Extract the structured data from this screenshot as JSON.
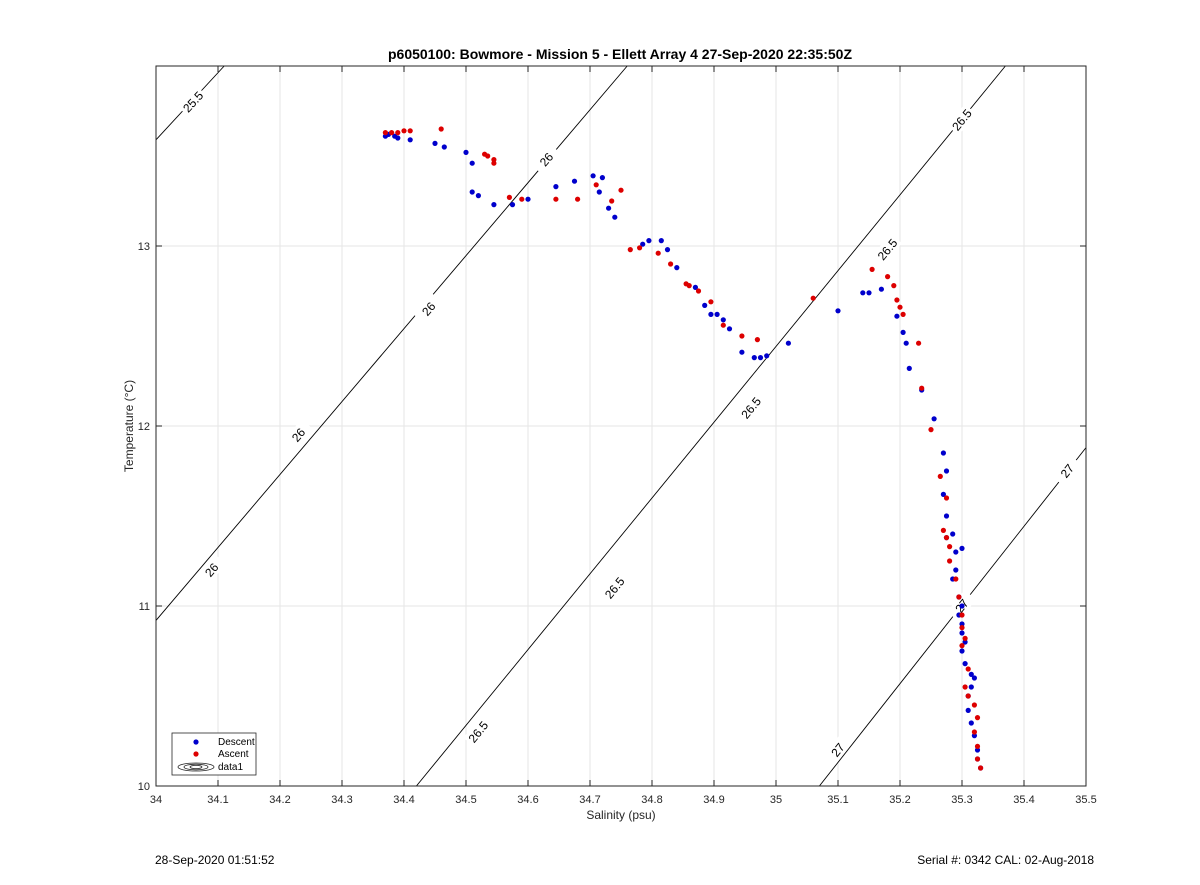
{
  "chart_data": {
    "type": "scatter",
    "title": "p6050100: Bowmore - Mission 5 - Ellett Array 4 27-Sep-2020 22:35:50Z",
    "xlabel": "Salinity (psu)",
    "ylabel": "Temperature (°C)",
    "xlim": [
      34,
      35.5
    ],
    "ylim": [
      10,
      14
    ],
    "xticks": [
      "34",
      "34.1",
      "34.2",
      "34.3",
      "34.4",
      "34.5",
      "34.6",
      "34.7",
      "34.8",
      "34.9",
      "35",
      "35.1",
      "35.2",
      "35.3",
      "35.4",
      "35.5"
    ],
    "yticks": [
      "10",
      "11",
      "12",
      "13"
    ],
    "grid": true,
    "legend": {
      "placement": "bottom-left",
      "entries": [
        "Descent",
        "Ascent",
        "data1"
      ]
    },
    "series": [
      {
        "name": "Descent",
        "color": "#0000cc",
        "points": [
          [
            34.37,
            13.61
          ],
          [
            34.375,
            13.62
          ],
          [
            34.385,
            13.61
          ],
          [
            34.39,
            13.6
          ],
          [
            34.41,
            13.59
          ],
          [
            34.45,
            13.57
          ],
          [
            34.465,
            13.55
          ],
          [
            34.5,
            13.52
          ],
          [
            34.51,
            13.46
          ],
          [
            34.51,
            13.3
          ],
          [
            34.52,
            13.28
          ],
          [
            34.545,
            13.23
          ],
          [
            34.575,
            13.23
          ],
          [
            34.6,
            13.26
          ],
          [
            34.645,
            13.33
          ],
          [
            34.675,
            13.36
          ],
          [
            34.705,
            13.39
          ],
          [
            34.72,
            13.38
          ],
          [
            34.715,
            13.3
          ],
          [
            34.73,
            13.21
          ],
          [
            34.74,
            13.16
          ],
          [
            34.785,
            13.01
          ],
          [
            34.795,
            13.03
          ],
          [
            34.815,
            13.03
          ],
          [
            34.825,
            12.98
          ],
          [
            34.84,
            12.88
          ],
          [
            34.87,
            12.77
          ],
          [
            34.885,
            12.67
          ],
          [
            34.895,
            12.62
          ],
          [
            34.905,
            12.62
          ],
          [
            34.915,
            12.59
          ],
          [
            34.925,
            12.54
          ],
          [
            34.945,
            12.41
          ],
          [
            34.965,
            12.38
          ],
          [
            34.975,
            12.38
          ],
          [
            34.985,
            12.39
          ],
          [
            35.02,
            12.46
          ],
          [
            35.1,
            12.64
          ],
          [
            35.14,
            12.74
          ],
          [
            35.15,
            12.74
          ],
          [
            35.17,
            12.76
          ],
          [
            35.195,
            12.61
          ],
          [
            35.205,
            12.52
          ],
          [
            35.21,
            12.46
          ],
          [
            35.215,
            12.32
          ],
          [
            35.235,
            12.2
          ],
          [
            35.255,
            12.04
          ],
          [
            35.27,
            11.85
          ],
          [
            35.275,
            11.75
          ],
          [
            35.27,
            11.62
          ],
          [
            35.275,
            11.5
          ],
          [
            35.275,
            11.38
          ],
          [
            35.285,
            11.4
          ],
          [
            35.29,
            11.3
          ],
          [
            35.3,
            11.32
          ],
          [
            35.29,
            11.2
          ],
          [
            35.285,
            11.15
          ],
          [
            35.295,
            11.05
          ],
          [
            35.3,
            11.0
          ],
          [
            35.295,
            10.95
          ],
          [
            35.3,
            10.9
          ],
          [
            35.3,
            10.85
          ],
          [
            35.305,
            10.8
          ],
          [
            35.3,
            10.75
          ],
          [
            35.305,
            10.68
          ],
          [
            35.315,
            10.62
          ],
          [
            35.32,
            10.6
          ],
          [
            35.315,
            10.55
          ],
          [
            35.31,
            10.5
          ],
          [
            35.31,
            10.42
          ],
          [
            35.315,
            10.35
          ],
          [
            35.32,
            10.28
          ],
          [
            35.325,
            10.2
          ],
          [
            35.325,
            10.15
          ],
          [
            35.33,
            10.1
          ]
        ]
      },
      {
        "name": "Ascent",
        "color": "#dd0000",
        "points": [
          [
            34.37,
            13.63
          ],
          [
            34.38,
            13.63
          ],
          [
            34.39,
            13.63
          ],
          [
            34.4,
            13.64
          ],
          [
            34.41,
            13.64
          ],
          [
            34.46,
            13.65
          ],
          [
            34.53,
            13.51
          ],
          [
            34.535,
            13.5
          ],
          [
            34.545,
            13.48
          ],
          [
            34.545,
            13.46
          ],
          [
            34.57,
            13.27
          ],
          [
            34.59,
            13.26
          ],
          [
            34.645,
            13.26
          ],
          [
            34.68,
            13.26
          ],
          [
            34.71,
            13.34
          ],
          [
            34.735,
            13.25
          ],
          [
            34.75,
            13.31
          ],
          [
            34.765,
            12.98
          ],
          [
            34.78,
            12.99
          ],
          [
            34.81,
            12.96
          ],
          [
            34.83,
            12.9
          ],
          [
            34.855,
            12.79
          ],
          [
            34.86,
            12.78
          ],
          [
            34.875,
            12.75
          ],
          [
            34.895,
            12.69
          ],
          [
            34.915,
            12.56
          ],
          [
            34.945,
            12.5
          ],
          [
            34.97,
            12.48
          ],
          [
            35.06,
            12.71
          ],
          [
            35.155,
            12.87
          ],
          [
            35.18,
            12.83
          ],
          [
            35.19,
            12.78
          ],
          [
            35.195,
            12.7
          ],
          [
            35.2,
            12.66
          ],
          [
            35.205,
            12.62
          ],
          [
            35.23,
            12.46
          ],
          [
            35.235,
            12.21
          ],
          [
            35.25,
            11.98
          ],
          [
            35.265,
            11.72
          ],
          [
            35.275,
            11.6
          ],
          [
            35.27,
            11.42
          ],
          [
            35.275,
            11.38
          ],
          [
            35.28,
            11.33
          ],
          [
            35.28,
            11.25
          ],
          [
            35.29,
            11.15
          ],
          [
            35.295,
            11.05
          ],
          [
            35.3,
            10.95
          ],
          [
            35.3,
            10.88
          ],
          [
            35.305,
            10.82
          ],
          [
            35.3,
            10.78
          ],
          [
            35.31,
            10.65
          ],
          [
            35.305,
            10.55
          ],
          [
            35.31,
            10.5
          ],
          [
            35.32,
            10.45
          ],
          [
            35.325,
            10.38
          ],
          [
            35.32,
            10.3
          ],
          [
            35.325,
            10.22
          ],
          [
            35.325,
            10.15
          ],
          [
            35.33,
            10.1
          ]
        ]
      }
    ],
    "contours": [
      {
        "label": "25.5",
        "line": [
          [
            34.0,
            13.59
          ],
          [
            34.11,
            14.0
          ]
        ],
        "labels": [
          [
            34.06,
            13.8
          ]
        ]
      },
      {
        "label": "26",
        "line": [
          [
            34.0,
            10.92
          ],
          [
            34.76,
            14.0
          ]
        ],
        "labels": [
          [
            34.09,
            11.2
          ],
          [
            34.44,
            12.65
          ],
          [
            34.23,
            11.95
          ],
          [
            34.63,
            13.48
          ]
        ]
      },
      {
        "label": "26.5",
        "line": [
          [
            34.42,
            10.0
          ],
          [
            35.37,
            14.0
          ]
        ],
        "labels": [
          [
            34.52,
            10.3
          ],
          [
            34.74,
            11.1
          ],
          [
            34.96,
            12.1
          ],
          [
            35.18,
            12.98
          ],
          [
            35.3,
            13.7
          ]
        ]
      },
      {
        "label": "27",
        "line": [
          [
            35.07,
            10.0
          ],
          [
            35.5,
            11.88
          ]
        ],
        "labels": [
          [
            35.1,
            10.2
          ],
          [
            35.3,
            11.0
          ],
          [
            35.47,
            11.75
          ]
        ]
      }
    ]
  },
  "footer": {
    "left": "28-Sep-2020 01:51:52",
    "right": "Serial #: 0342  CAL: 02-Aug-2018"
  }
}
